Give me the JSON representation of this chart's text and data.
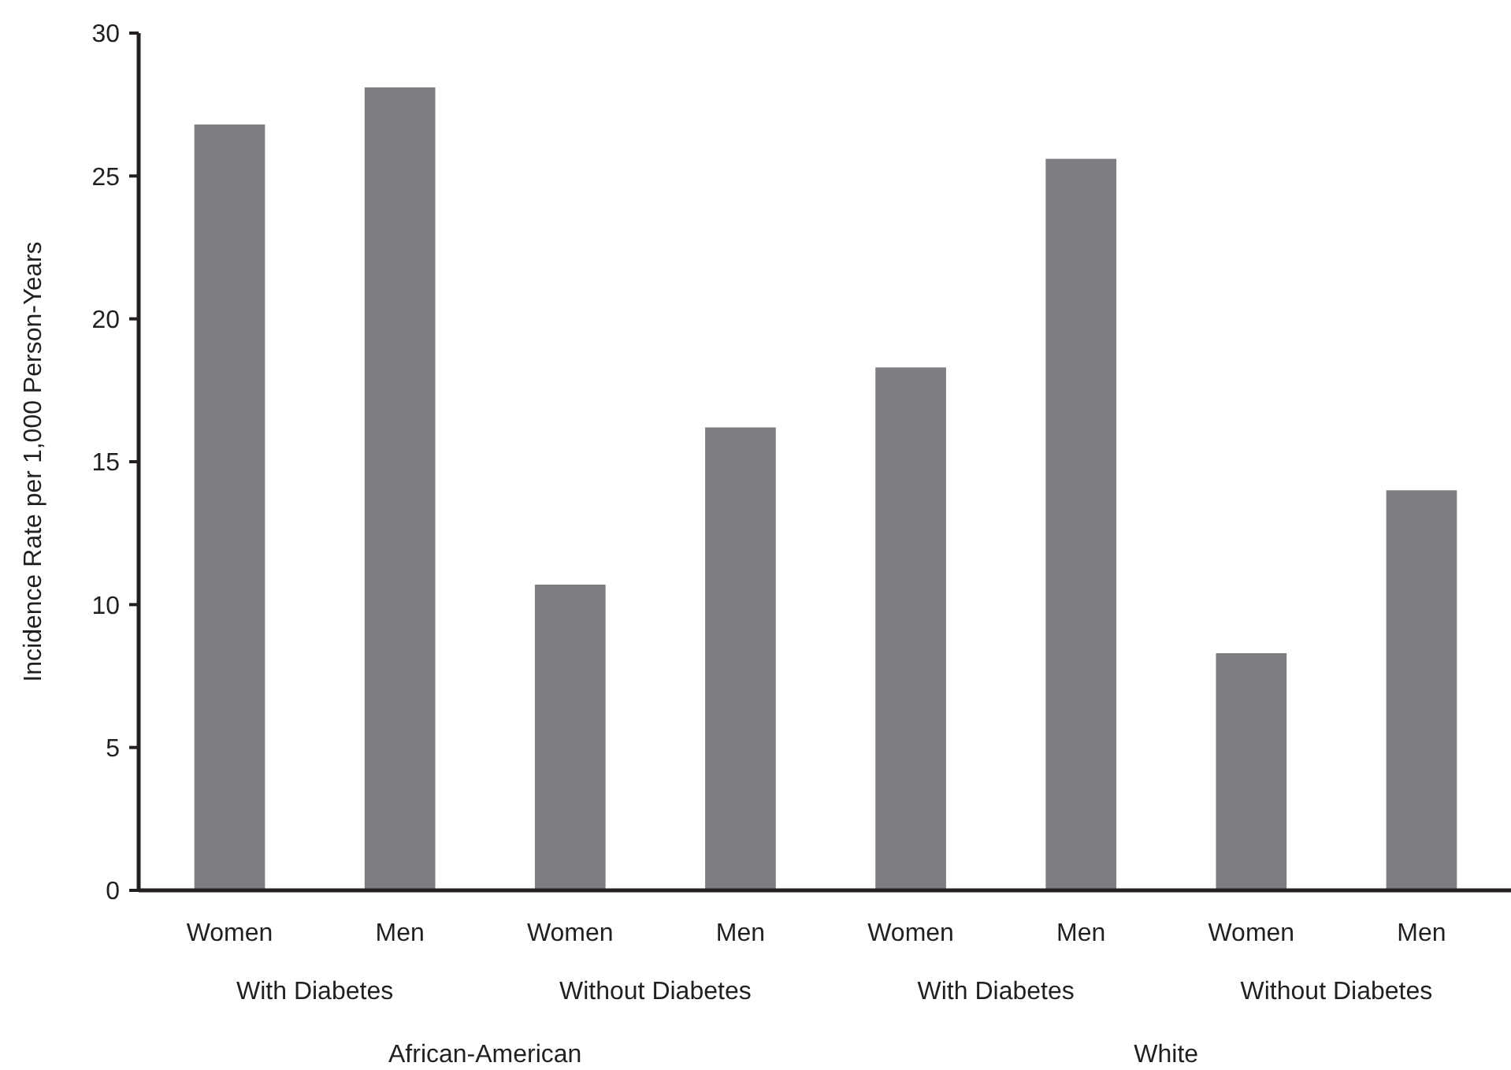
{
  "chart_data": {
    "type": "bar",
    "ylabel": "Incidence Rate per 1,000 Person-Years",
    "categories": [
      "Women",
      "Men",
      "Women",
      "Men",
      "Women",
      "Men",
      "Women",
      "Men"
    ],
    "values": [
      26.8,
      28.1,
      10.7,
      16.2,
      18.3,
      25.6,
      8.3,
      14.0
    ],
    "color": "#7d7e82",
    "ylim": [
      0,
      30
    ],
    "yticks": [
      0,
      5,
      10,
      15,
      20,
      25,
      30
    ],
    "annotations": [
      "With Diabetes",
      "Without Diabetes",
      "With Diabetes",
      "Without Diabetes",
      "African-American",
      "White"
    ]
  }
}
